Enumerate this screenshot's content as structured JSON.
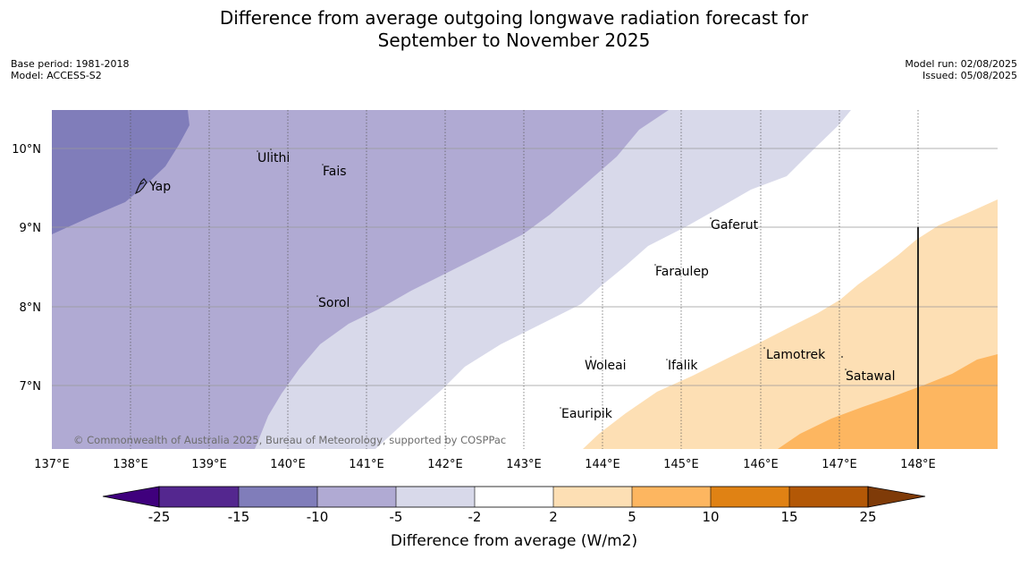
{
  "title": {
    "line1": "Difference from average outgoing longwave radiation forecast for",
    "line2": "September to November 2025"
  },
  "meta_left": {
    "base_period": "Base period: 1981-2018",
    "model": "Model: ACCESS-S2"
  },
  "meta_right": {
    "model_run": "Model run: 02/08/2025",
    "issued": "Issued: 05/08/2025"
  },
  "map": {
    "copyright": "© Commonwealth of Australia 2025, Bureau of Meteorology, supported by COSPPac",
    "lon_ticks": [
      "137°E",
      "138°E",
      "139°E",
      "140°E",
      "141°E",
      "142°E",
      "143°E",
      "144°E",
      "145°E",
      "146°E",
      "147°E",
      "148°E"
    ],
    "lat_ticks": [
      "10°N",
      "9°N",
      "8°N",
      "7°N"
    ],
    "places": [
      {
        "name": "Yap"
      },
      {
        "name": "Ulithi"
      },
      {
        "name": "Fais"
      },
      {
        "name": "Gaferut"
      },
      {
        "name": "Faraulep"
      },
      {
        "name": "Sorol"
      },
      {
        "name": "Lamotrek"
      },
      {
        "name": "Woleai"
      },
      {
        "name": "Ifalik"
      },
      {
        "name": "Satawal"
      },
      {
        "name": "Eauripik"
      }
    ]
  },
  "colorbar": {
    "label": "Difference from average (W/m2)",
    "ticks": [
      "-25",
      "-15",
      "-10",
      "-5",
      "-2",
      "2",
      "5",
      "10",
      "15",
      "25"
    ],
    "colors": [
      "#3f007d",
      "#54278f",
      "#807dba",
      "#b0aad3",
      "#d8d9ea",
      "#ffffff",
      "#fddfb4",
      "#fdb660",
      "#e08214",
      "#b35806",
      "#7f3b08"
    ]
  }
}
